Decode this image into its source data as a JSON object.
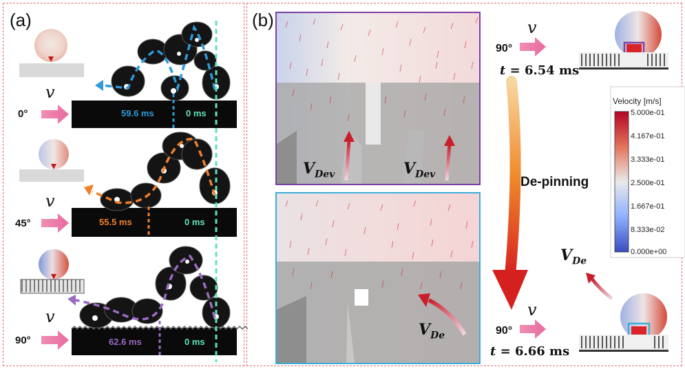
{
  "panel_a": {
    "letter": "(a)",
    "velocity_symbol": "v",
    "rows": [
      {
        "angle": "0°",
        "end_time": "59.6 ms",
        "start_time": "0 ms",
        "color": "#2f9ad8"
      },
      {
        "angle": "45°",
        "end_time": "55.5 ms",
        "start_time": "0 ms",
        "color": "#f07f2a"
      },
      {
        "angle": "90°",
        "end_time": "62.6 ms",
        "start_time": "0 ms",
        "color": "#9b6ac4"
      }
    ]
  },
  "panel_b": {
    "letter": "(b)",
    "velocity_symbol": "v",
    "top": {
      "angle": "90°",
      "time_prefix": "t",
      "time_value": " = 6.54 ms"
    },
    "bottom": {
      "angle": "90°",
      "time_prefix": "t",
      "time_value": " = 6.66 ms"
    },
    "transition": "De-pinning",
    "vectors": {
      "dev_main": "V",
      "dev_sub": "Dev",
      "de_main": "V",
      "de_sub": "De"
    },
    "inset_top_border": "#7b3fa6",
    "inset_bottom_border": "#3aaed8",
    "colorbar": {
      "title": "Velocity [m/s]",
      "ticks": [
        "5.000e-01",
        "4.167e-01",
        "3.333e-01",
        "2.500e-01",
        "1.667e-01",
        "8.333e-02",
        "0.000e+00"
      ]
    }
  }
}
